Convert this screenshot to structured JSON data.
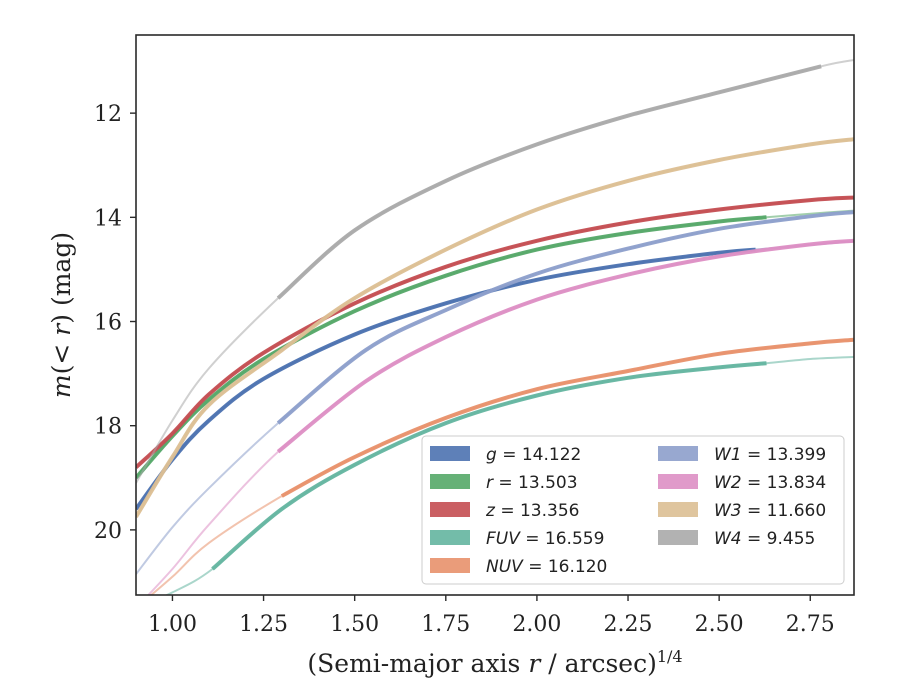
{
  "chart_data": {
    "type": "line",
    "title": "",
    "xlabel": "(Semi-major axis r / arcsec)^1/4",
    "ylabel": "m(< r) (mag)",
    "xlim": [
      0.9,
      2.87
    ],
    "ylim": [
      21.25,
      10.5
    ],
    "y_inverted": true,
    "grid": false,
    "legend_position": "lower-right",
    "x_ticks": [
      "1.00",
      "1.25",
      "1.50",
      "1.75",
      "2.00",
      "2.25",
      "2.50",
      "2.75"
    ],
    "x_tick_values": [
      1.0,
      1.25,
      1.5,
      1.75,
      2.0,
      2.25,
      2.5,
      2.75
    ],
    "y_ticks": [
      "12",
      "14",
      "16",
      "18",
      "20"
    ],
    "y_tick_values": [
      12,
      14,
      16,
      18,
      20
    ],
    "series": [
      {
        "label": "g",
        "value": "14.122",
        "color": "#4c72b0",
        "x": [
          0.9,
          1.0,
          1.1,
          1.25,
          1.5,
          1.75,
          2.0,
          2.25,
          2.5,
          2.6,
          2.75,
          2.87
        ],
        "y": [
          19.6,
          18.65,
          17.9,
          17.1,
          16.25,
          15.65,
          15.2,
          14.9,
          14.68,
          14.62,
          14.53,
          14.46
        ],
        "band_start": 0.9,
        "band_end": 2.6
      },
      {
        "label": "r",
        "value": "13.503",
        "color": "#55a868",
        "x": [
          0.9,
          1.0,
          1.1,
          1.25,
          1.5,
          1.75,
          2.0,
          2.25,
          2.5,
          2.63,
          2.75,
          2.87
        ],
        "y": [
          19.0,
          18.2,
          17.5,
          16.72,
          15.8,
          15.12,
          14.62,
          14.3,
          14.08,
          14.0,
          13.93,
          13.87
        ],
        "band_start": 0.9,
        "band_end": 2.63
      },
      {
        "label": "z",
        "value": "13.356",
        "color": "#c44e52",
        "x": [
          0.9,
          1.0,
          1.1,
          1.25,
          1.5,
          1.75,
          2.0,
          2.25,
          2.5,
          2.75,
          2.87
        ],
        "y": [
          18.8,
          18.15,
          17.4,
          16.6,
          15.65,
          14.95,
          14.45,
          14.1,
          13.85,
          13.67,
          13.62
        ],
        "band_start": 0.9,
        "band_end": 2.87
      },
      {
        "label": "FUV",
        "value": "16.559",
        "color": "#64b5a0",
        "x": [
          0.9,
          1.0,
          1.11,
          1.3,
          1.5,
          1.75,
          2.0,
          2.25,
          2.5,
          2.63,
          2.75,
          2.87
        ],
        "y": [
          21.5,
          21.2,
          20.75,
          19.6,
          18.75,
          17.95,
          17.42,
          17.08,
          16.88,
          16.8,
          16.72,
          16.68
        ],
        "band_start": 1.11,
        "band_end": 2.63
      },
      {
        "label": "NUV",
        "value": "16.120",
        "color": "#e8916b",
        "x": [
          0.9,
          1.0,
          1.1,
          1.3,
          1.5,
          1.75,
          2.0,
          2.25,
          2.5,
          2.75,
          2.87
        ],
        "y": [
          21.5,
          20.9,
          20.25,
          19.35,
          18.6,
          17.85,
          17.3,
          16.95,
          16.62,
          16.42,
          16.35
        ],
        "band_start": 1.3,
        "band_end": 2.87
      },
      {
        "label": "W1",
        "value": "13.399",
        "color": "#8d9fcb",
        "x": [
          0.9,
          1.0,
          1.1,
          1.29,
          1.53,
          1.75,
          2.0,
          2.25,
          2.5,
          2.75,
          2.87
        ],
        "y": [
          20.85,
          19.95,
          19.2,
          17.95,
          16.55,
          15.78,
          15.08,
          14.6,
          14.22,
          13.98,
          13.9
        ],
        "band_start": 1.29,
        "band_end": 2.87
      },
      {
        "label": "W2",
        "value": "13.834",
        "color": "#dd8fc4",
        "x": [
          0.9,
          1.0,
          1.1,
          1.29,
          1.53,
          1.75,
          2.0,
          2.25,
          2.5,
          2.75,
          2.87
        ],
        "y": [
          21.5,
          20.75,
          19.9,
          18.5,
          17.15,
          16.3,
          15.58,
          15.1,
          14.75,
          14.52,
          14.45
        ],
        "band_start": 1.29,
        "band_end": 2.87
      },
      {
        "label": "W3",
        "value": "11.660",
        "color": "#dcbf94",
        "x": [
          0.9,
          1.0,
          1.1,
          1.3,
          1.5,
          1.75,
          2.0,
          2.25,
          2.5,
          2.75,
          2.87
        ],
        "y": [
          19.75,
          18.6,
          17.6,
          16.55,
          15.55,
          14.62,
          13.85,
          13.3,
          12.9,
          12.6,
          12.5
        ],
        "band_start": 0.9,
        "band_end": 2.87
      },
      {
        "label": "W4",
        "value": "9.455",
        "color": "#aaaaaa",
        "x": [
          0.9,
          1.0,
          1.1,
          1.29,
          1.5,
          1.75,
          2.0,
          2.25,
          2.5,
          2.78,
          2.87
        ],
        "y": [
          19.1,
          17.9,
          16.9,
          15.55,
          14.25,
          13.3,
          12.6,
          12.05,
          11.6,
          11.1,
          10.98
        ],
        "band_start": 1.29,
        "band_end": 2.78
      }
    ]
  }
}
